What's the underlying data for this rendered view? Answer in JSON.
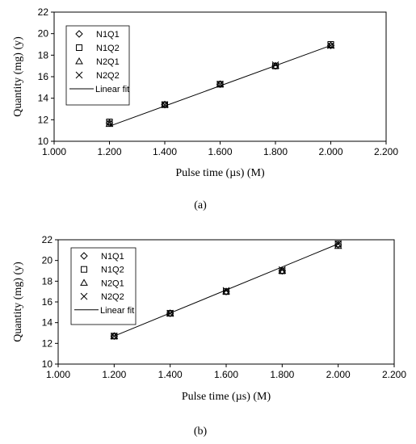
{
  "chart_data": [
    {
      "type": "scatter",
      "caption": "(a)",
      "xlabel": "Pulse time (µs) (M)",
      "ylabel": "Quantity (mg) (y)",
      "xlim": [
        1.0,
        2.2
      ],
      "ylim": [
        10,
        22
      ],
      "xticks": [
        "1.000",
        "1.200",
        "1.400",
        "1.600",
        "1.800",
        "2.000",
        "2.200"
      ],
      "yticks": [
        "10",
        "12",
        "14",
        "16",
        "18",
        "20",
        "22"
      ],
      "grid": false,
      "legend_position": "top-left",
      "series": [
        {
          "name": "N1Q1",
          "marker": "diamond",
          "x": [
            1.2,
            1.4,
            1.6,
            1.8,
            2.0
          ],
          "y": [
            11.7,
            13.4,
            15.3,
            17.0,
            18.9
          ]
        },
        {
          "name": "N1Q2",
          "marker": "square",
          "x": [
            1.2,
            1.4,
            1.6,
            1.8,
            2.0
          ],
          "y": [
            11.8,
            13.4,
            15.3,
            17.0,
            19.0
          ]
        },
        {
          "name": "N2Q1",
          "marker": "triangle",
          "x": [
            1.2,
            1.4,
            1.6,
            1.8,
            2.0
          ],
          "y": [
            11.6,
            13.4,
            15.3,
            17.0,
            18.9
          ]
        },
        {
          "name": "N2Q2",
          "marker": "cross",
          "x": [
            1.2,
            1.4,
            1.6,
            1.8,
            2.0
          ],
          "y": [
            11.7,
            13.4,
            15.3,
            17.1,
            18.9
          ]
        }
      ],
      "fit": {
        "name": "Linear fit",
        "x": [
          1.2,
          2.0
        ],
        "y": [
          11.4,
          18.9
        ]
      }
    },
    {
      "type": "scatter",
      "caption": "(b)",
      "xlabel": "Pulse time (µs) (M)",
      "ylabel": "Quantity (mg) (y)",
      "xlim": [
        1.0,
        2.2
      ],
      "ylim": [
        10,
        22
      ],
      "xticks": [
        "1.000",
        "1.200",
        "1.400",
        "1.600",
        "1.800",
        "2.000",
        "2.200"
      ],
      "yticks": [
        "10",
        "12",
        "14",
        "16",
        "18",
        "20",
        "22"
      ],
      "grid": false,
      "legend_position": "top-left",
      "series": [
        {
          "name": "N1Q1",
          "marker": "diamond",
          "x": [
            1.2,
            1.4,
            1.6,
            1.8,
            2.0
          ],
          "y": [
            12.7,
            14.9,
            17.0,
            19.0,
            21.5
          ]
        },
        {
          "name": "N1Q2",
          "marker": "square",
          "x": [
            1.2,
            1.4,
            1.6,
            1.8,
            2.0
          ],
          "y": [
            12.7,
            14.9,
            17.0,
            19.0,
            21.6
          ]
        },
        {
          "name": "N2Q1",
          "marker": "triangle",
          "x": [
            1.2,
            1.4,
            1.6,
            1.8,
            2.0
          ],
          "y": [
            12.7,
            14.9,
            17.0,
            19.0,
            21.4
          ]
        },
        {
          "name": "N2Q2",
          "marker": "cross",
          "x": [
            1.2,
            1.4,
            1.6,
            1.8,
            2.0
          ],
          "y": [
            12.7,
            14.9,
            17.1,
            19.1,
            21.6
          ]
        }
      ],
      "fit": {
        "name": "Linear fit",
        "x": [
          1.2,
          2.0
        ],
        "y": [
          12.7,
          21.6
        ]
      }
    }
  ]
}
